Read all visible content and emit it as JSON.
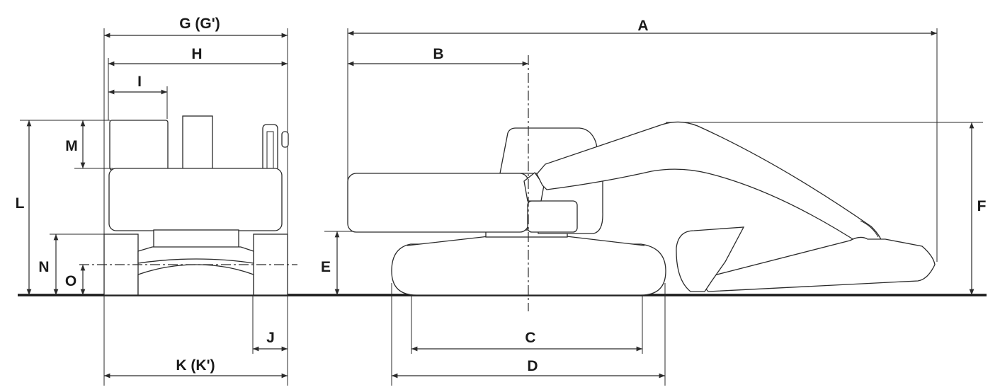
{
  "labels": {
    "A": "A",
    "B": "B",
    "C": "C",
    "D": "D",
    "E": "E",
    "F": "F",
    "G": "G (G')",
    "H": "H",
    "I": "I",
    "J": "J",
    "K": "K (K')",
    "L": "L",
    "M": "M",
    "N": "N",
    "O": "O"
  },
  "colors": {
    "line": "#2a2a2a",
    "ground": "#1a1a1a",
    "background": "#ffffff"
  }
}
